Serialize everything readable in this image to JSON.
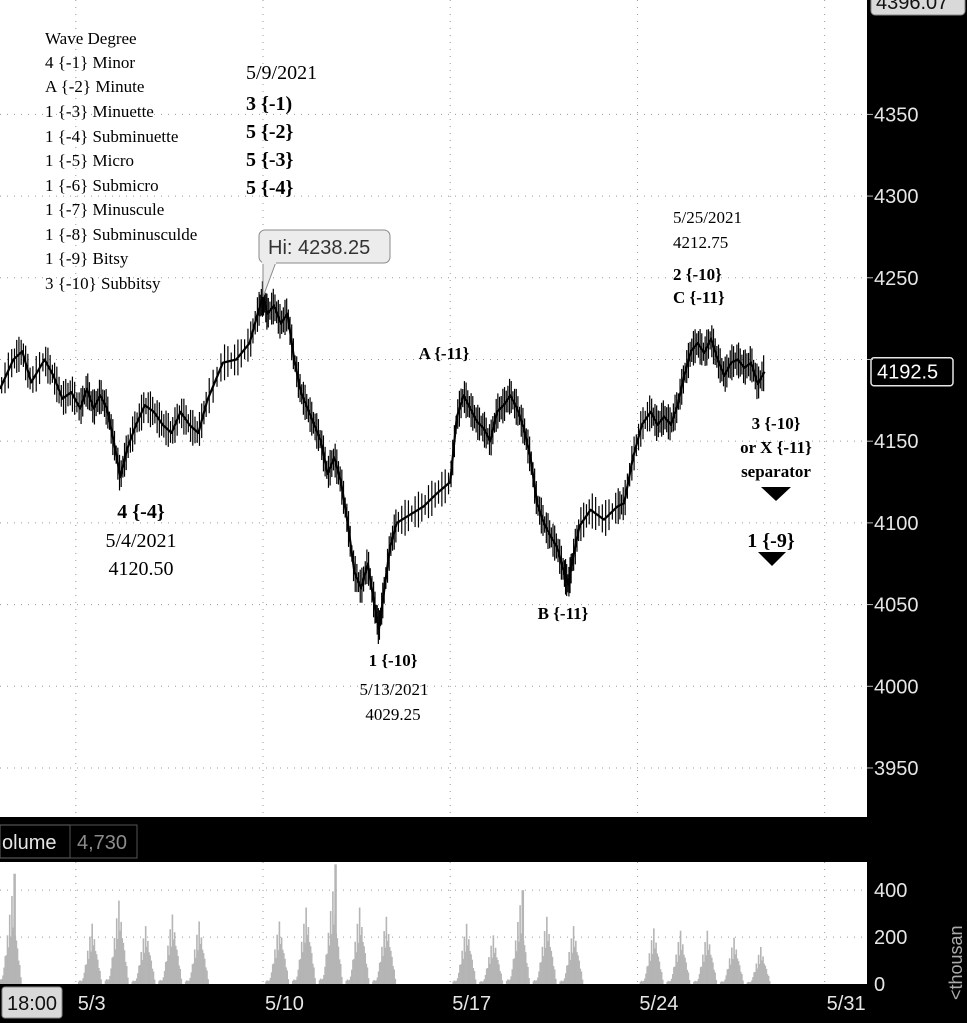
{
  "chart_data": {
    "type": "line",
    "ylim": [
      3920,
      4420
    ],
    "y_ticks": [
      3950,
      4000,
      4050,
      4100,
      4150,
      4200,
      4250,
      4300,
      4350
    ],
    "y_tick_labels": [
      "3950",
      "4000",
      "4050",
      "4100",
      "4150",
      "",
      "4250",
      "4300",
      "4350"
    ],
    "x_ticks": [
      {
        "date": "2021-05-03",
        "label": "5/3"
      },
      {
        "date": "2021-05-10",
        "label": "5/10"
      },
      {
        "date": "2021-05-17",
        "label": "5/17"
      },
      {
        "date": "2021-05-24",
        "label": "5/24"
      },
      {
        "date": "2021-05-31",
        "label": "5/31"
      }
    ],
    "xlim": [
      "2021-04-30T04:00",
      "2021-06-01T14:00"
    ],
    "grid": true,
    "series": [
      {
        "values": [
          [
            "2021-04-30T04:00",
            4182
          ],
          [
            "2021-04-30T16:00",
            4200
          ],
          [
            "2021-05-01T00:00",
            4205
          ],
          [
            "2021-05-01T08:00",
            4186
          ],
          [
            "2021-05-01T20:00",
            4200
          ],
          [
            "2021-05-02T04:00",
            4190
          ],
          [
            "2021-05-02T12:00",
            4176
          ],
          [
            "2021-05-02T20:00",
            4180
          ],
          [
            "2021-05-03T04:00",
            4170
          ],
          [
            "2021-05-03T10:00",
            4182
          ],
          [
            "2021-05-03T16:00",
            4170
          ],
          [
            "2021-05-03T22:00",
            4178
          ],
          [
            "2021-05-04T04:00",
            4170
          ],
          [
            "2021-05-04T10:00",
            4150
          ],
          [
            "2021-05-04T16:00",
            4128
          ],
          [
            "2021-05-04T22:00",
            4145
          ],
          [
            "2021-05-05T06:00",
            4160
          ],
          [
            "2021-05-05T14:00",
            4172
          ],
          [
            "2021-05-05T22:00",
            4168
          ],
          [
            "2021-05-06T06:00",
            4160
          ],
          [
            "2021-05-06T14:00",
            4155
          ],
          [
            "2021-05-06T22:00",
            4168
          ],
          [
            "2021-05-07T06:00",
            4160
          ],
          [
            "2021-05-07T14:00",
            4155
          ],
          [
            "2021-05-07T22:00",
            4175
          ],
          [
            "2021-05-08T12:00",
            4198
          ],
          [
            "2021-05-09T00:00",
            4200
          ],
          [
            "2021-05-09T12:00",
            4210
          ],
          [
            "2021-05-09T20:00",
            4230
          ],
          [
            "2021-05-10T00:00",
            4238
          ],
          [
            "2021-05-10T04:00",
            4228
          ],
          [
            "2021-05-10T10:00",
            4233
          ],
          [
            "2021-05-10T16:00",
            4222
          ],
          [
            "2021-05-10T22:00",
            4228
          ],
          [
            "2021-05-11T04:00",
            4200
          ],
          [
            "2021-05-11T10:00",
            4180
          ],
          [
            "2021-05-11T16:00",
            4170
          ],
          [
            "2021-05-11T22:00",
            4160
          ],
          [
            "2021-05-12T04:00",
            4150
          ],
          [
            "2021-05-12T10:00",
            4130
          ],
          [
            "2021-05-12T16:00",
            4140
          ],
          [
            "2021-05-12T22:00",
            4125
          ],
          [
            "2021-05-13T04:00",
            4100
          ],
          [
            "2021-05-13T10:00",
            4070
          ],
          [
            "2021-05-13T16:00",
            4060
          ],
          [
            "2021-05-13T22:00",
            4075
          ],
          [
            "2021-05-14T04:00",
            4050
          ],
          [
            "2021-05-14T08:00",
            4035
          ],
          [
            "2021-05-14T12:00",
            4055
          ],
          [
            "2021-05-14T18:00",
            4085
          ],
          [
            "2021-05-15T00:00",
            4100
          ],
          [
            "2021-05-15T12:00",
            4105
          ],
          [
            "2021-05-16T00:00",
            4110
          ],
          [
            "2021-05-16T12:00",
            4118
          ],
          [
            "2021-05-17T00:00",
            4125
          ],
          [
            "2021-05-17T06:00",
            4165
          ],
          [
            "2021-05-17T12:00",
            4178
          ],
          [
            "2021-05-17T18:00",
            4170
          ],
          [
            "2021-05-18T00:00",
            4162
          ],
          [
            "2021-05-18T06:00",
            4158
          ],
          [
            "2021-05-18T12:00",
            4150
          ],
          [
            "2021-05-18T18:00",
            4168
          ],
          [
            "2021-05-19T00:00",
            4172
          ],
          [
            "2021-05-19T06:00",
            4178
          ],
          [
            "2021-05-19T12:00",
            4170
          ],
          [
            "2021-05-19T18:00",
            4158
          ],
          [
            "2021-05-20T00:00",
            4140
          ],
          [
            "2021-05-20T06:00",
            4112
          ],
          [
            "2021-05-20T12:00",
            4100
          ],
          [
            "2021-05-20T18:00",
            4092
          ],
          [
            "2021-05-21T00:00",
            4085
          ],
          [
            "2021-05-21T06:00",
            4070
          ],
          [
            "2021-05-21T10:00",
            4062
          ],
          [
            "2021-05-21T14:00",
            4078
          ],
          [
            "2021-05-21T20:00",
            4098
          ],
          [
            "2021-05-22T06:00",
            4108
          ],
          [
            "2021-05-22T18:00",
            4102
          ],
          [
            "2021-05-23T06:00",
            4110
          ],
          [
            "2021-05-23T12:00",
            4112
          ],
          [
            "2021-05-23T20:00",
            4140
          ],
          [
            "2021-05-24T04:00",
            4160
          ],
          [
            "2021-05-24T12:00",
            4168
          ],
          [
            "2021-05-24T18:00",
            4160
          ],
          [
            "2021-05-25T00:00",
            4165
          ],
          [
            "2021-05-25T06:00",
            4160
          ],
          [
            "2021-05-25T12:00",
            4172
          ],
          [
            "2021-05-25T18:00",
            4190
          ],
          [
            "2021-05-26T00:00",
            4205
          ],
          [
            "2021-05-26T06:00",
            4210
          ],
          [
            "2021-05-26T12:00",
            4204
          ],
          [
            "2021-05-26T18:00",
            4212.75
          ],
          [
            "2021-05-27T00:00",
            4200
          ],
          [
            "2021-05-27T06:00",
            4190
          ],
          [
            "2021-05-27T12:00",
            4198
          ],
          [
            "2021-05-27T18:00",
            4200
          ],
          [
            "2021-05-28T00:00",
            4195
          ],
          [
            "2021-05-28T06:00",
            4198
          ],
          [
            "2021-05-28T12:00",
            4185
          ],
          [
            "2021-05-28T18:00",
            4192.5
          ]
        ]
      }
    ],
    "volume": {
      "label": "olume",
      "last": "4,730",
      "ticks": [
        "400",
        "200",
        "0"
      ],
      "ylim": [
        0,
        520
      ],
      "sessions": [
        {
          "date": "2021-04-30",
          "peak": 380
        },
        {
          "date": "2021-05-03",
          "peak": 260
        },
        {
          "date": "2021-05-04",
          "peak": 360
        },
        {
          "date": "2021-05-05",
          "peak": 250
        },
        {
          "date": "2021-05-06",
          "peak": 300
        },
        {
          "date": "2021-05-07",
          "peak": 270
        },
        {
          "date": "2021-05-10",
          "peak": 270
        },
        {
          "date": "2021-05-11",
          "peak": 330
        },
        {
          "date": "2021-05-12",
          "peak": 400
        },
        {
          "date": "2021-05-13",
          "peak": 330
        },
        {
          "date": "2021-05-14",
          "peak": 290
        },
        {
          "date": "2021-05-17",
          "peak": 260
        },
        {
          "date": "2021-05-18",
          "peak": 210
        },
        {
          "date": "2021-05-19",
          "peak": 340
        },
        {
          "date": "2021-05-20",
          "peak": 290
        },
        {
          "date": "2021-05-21",
          "peak": 250
        },
        {
          "date": "2021-05-24",
          "peak": 240
        },
        {
          "date": "2021-05-25",
          "peak": 230
        },
        {
          "date": "2021-05-26",
          "peak": 230
        },
        {
          "date": "2021-05-27",
          "peak": 200
        },
        {
          "date": "2021-05-28",
          "peak": 160
        }
      ],
      "spikes": [
        {
          "date": "2021-04-30T16:00",
          "value": 470
        },
        {
          "date": "2021-05-12T16:00",
          "value": 510
        },
        {
          "date": "2021-05-19T16:00",
          "value": 400
        }
      ],
      "unit_label": "<thousan"
    },
    "price_tags": {
      "top": "4396.07",
      "last": "4192.5",
      "last_value": 4192.5
    },
    "time_tag": "18:00",
    "high_bubble": {
      "label": "Hi: 4238.25",
      "date": "2021-05-10T00:00",
      "value": 4238.25
    },
    "annotations": {
      "wave_degree": [
        "Wave Degree",
        "4 {-1} Minor",
        "A {-2} Minute",
        "1 {-3} Minuette",
        "1 {-4} Subminuette",
        "1 {-5} Micro",
        "1 {-6} Submicro",
        "1 {-7} Minuscule",
        "1 {-8} Subminusculde",
        "1 {-9} Bitsy",
        "3 {-10} Subbitsy"
      ],
      "may9": {
        "date": "5/9/2021",
        "lines": [
          "3 {-1)",
          "5 {-2}",
          "5 {-3}",
          "5 {-4}"
        ]
      },
      "may4": {
        "label": "4 {-4}",
        "date": "5/4/2021",
        "price": "4120.50"
      },
      "may13": {
        "label": "1 {-10}",
        "date": "5/13/2021",
        "price": "4029.25"
      },
      "A": "A {-11}",
      "B": "B {-11}",
      "may25": {
        "date": "5/25/2021",
        "price": "4212.75",
        "lines": [
          "2 {-10}",
          "C {-11}"
        ]
      },
      "right_top": [
        "3 {-10}",
        "or X {-11}",
        "separator"
      ],
      "right_bottom": "1 {-9}"
    },
    "colors": {
      "price": "#000000",
      "volume": "#b5b5b5",
      "grid": "#9a9a9a",
      "axis_bg": "#000000",
      "axis_text": "#e6e6e6"
    }
  }
}
